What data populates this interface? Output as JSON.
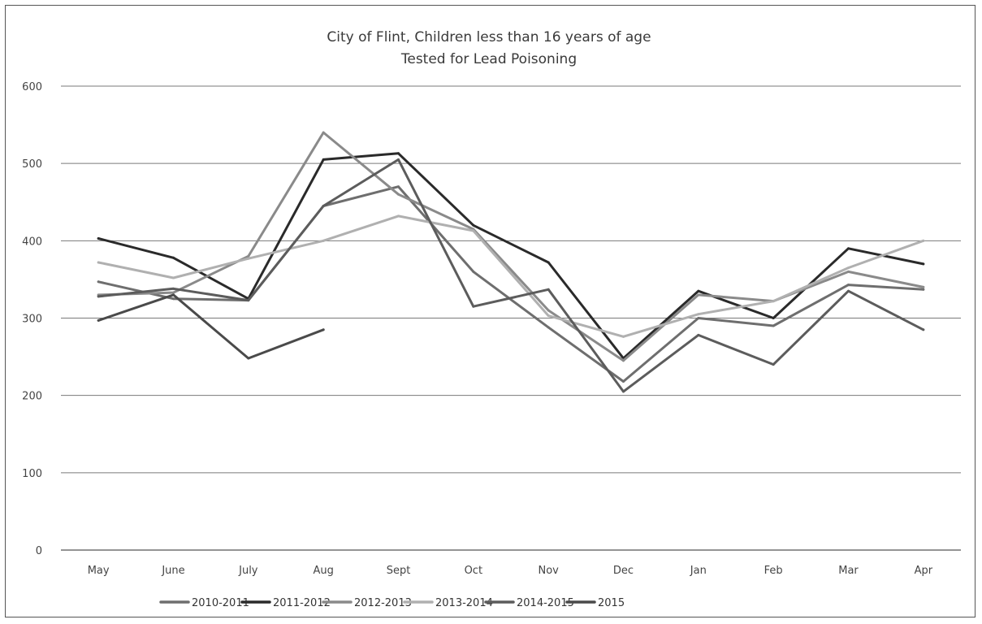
{
  "chart_data": {
    "type": "line",
    "title": "City of Flint, Children less than 16 years of age",
    "subtitle": "Tested for Lead Poisoning",
    "xlabel": "",
    "ylabel": "",
    "ylim": [
      0,
      600
    ],
    "yticks": [
      "0",
      "100",
      "200",
      "300",
      "400",
      "500",
      "600"
    ],
    "categories": [
      "May",
      "June",
      "July",
      "Aug",
      "Sept",
      "Oct",
      "Nov",
      "Dec",
      "Jan",
      "Feb",
      "Mar",
      "Apr"
    ],
    "grid": true,
    "legend_position": "bottom",
    "series": [
      {
        "name": "2010-2011",
        "color": "#6e6e6e",
        "values": [
          347,
          325,
          323,
          445,
          470,
          360,
          288,
          218,
          300,
          290,
          343,
          337
        ]
      },
      {
        "name": "2011-2012",
        "color": "#2a2a2a",
        "values": [
          403,
          378,
          325,
          505,
          513,
          420,
          372,
          248,
          335,
          300,
          390,
          370
        ]
      },
      {
        "name": "2012-2013",
        "color": "#8a8a8a",
        "values": [
          330,
          333,
          380,
          540,
          460,
          415,
          310,
          245,
          330,
          322,
          360,
          340
        ]
      },
      {
        "name": "2013-2014",
        "color": "#b0b0b0",
        "values": [
          372,
          352,
          377,
          400,
          432,
          413,
          303,
          276,
          305,
          322,
          365,
          400
        ]
      },
      {
        "name": "2014-2015",
        "color": "#5c5c5c",
        "values": [
          328,
          338,
          323,
          445,
          505,
          315,
          337,
          205,
          278,
          240,
          335,
          285
        ]
      },
      {
        "name": "2015",
        "color": "#4a4a4a",
        "values": [
          297,
          330,
          248,
          285,
          null,
          null,
          null,
          null,
          null,
          null,
          null,
          null
        ]
      }
    ]
  }
}
